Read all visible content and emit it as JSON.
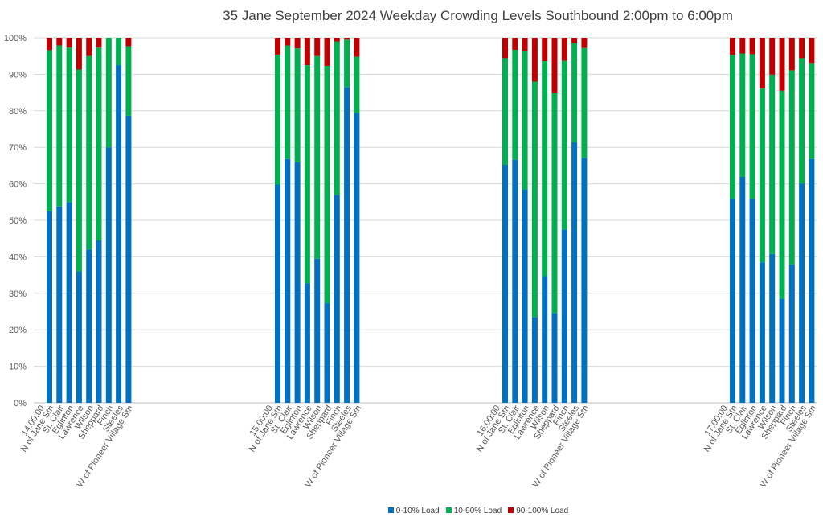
{
  "chart_data": {
    "type": "bar",
    "stacked": true,
    "title": "35 Jane September 2024 Weekday Crowding Levels Southbound 2:00pm to 6:00pm",
    "ylim": [
      0,
      100
    ],
    "yticks": [
      "0%",
      "10%",
      "20%",
      "30%",
      "40%",
      "50%",
      "60%",
      "70%",
      "80%",
      "90%",
      "100%"
    ],
    "grid": true,
    "legend_position": "bottom",
    "stops": [
      "N of Jane Stn",
      "St. Clair",
      "Eglinton",
      "Lawrence",
      "Wilson",
      "Sheppard",
      "Finch",
      "Steeles",
      "W of Pioneer Village Stn"
    ],
    "series_names": [
      "0-10% Load",
      "10-90% Load",
      "90-100% Load"
    ],
    "colors": [
      "#0070c0",
      "#00b050",
      "#c00000"
    ],
    "groups": [
      {
        "label": "14:00:00",
        "series": [
          {
            "name": "0-10% Load",
            "values": [
              52.5,
              53.8,
              55,
              36,
              42,
              44.5,
              70,
              92.5,
              78.7
            ]
          },
          {
            "name": "10-90% Load",
            "values": [
              44.1,
              44.1,
              42.3,
              55.3,
              53,
              52.8,
              30,
              7.5,
              19
            ]
          },
          {
            "name": "90-100% Load",
            "values": [
              3.4,
              2.1,
              2.7,
              8.7,
              5,
              2.7,
              0,
              0,
              2.3
            ]
          }
        ]
      },
      {
        "label": "15:00:00",
        "series": [
          {
            "name": "0-10% Load",
            "values": [
              59.8,
              66.8,
              65.9,
              32.7,
              39.5,
              27.3,
              57,
              86.5,
              79.4
            ]
          },
          {
            "name": "10-90% Load",
            "values": [
              35.6,
              31.1,
              31.2,
              59.8,
              55.5,
              65,
              42,
              13,
              15.4
            ]
          },
          {
            "name": "90-100% Load",
            "values": [
              4.6,
              2.1,
              2.9,
              7.5,
              5,
              7.7,
              1,
              0.5,
              5.2
            ]
          }
        ]
      },
      {
        "label": "16:00:00",
        "series": [
          {
            "name": "0-10% Load",
            "values": [
              65.2,
              66.6,
              58.5,
              23.5,
              34.7,
              24.6,
              47.5,
              71.4,
              67.1
            ]
          },
          {
            "name": "10-90% Load",
            "values": [
              29.2,
              30.1,
              37.8,
              64.5,
              58.9,
              60.2,
              46.2,
              27.1,
              30.1
            ]
          },
          {
            "name": "90-100% Load",
            "values": [
              5.6,
              3.3,
              3.7,
              12,
              6.4,
              15.2,
              6.3,
              1.5,
              2.8
            ]
          }
        ]
      },
      {
        "label": "17:00:00",
        "series": [
          {
            "name": "0-10% Load",
            "values": [
              55.9,
              61.9,
              55.9,
              38.5,
              40.8,
              28.5,
              37.9,
              60.1,
              66.8
            ]
          },
          {
            "name": "10-90% Load",
            "values": [
              39.4,
              33.8,
              39.6,
              47.6,
              49.1,
              57,
              53.2,
              34.3,
              26.3
            ]
          },
          {
            "name": "90-100% Load",
            "values": [
              4.7,
              4.3,
              4.5,
              13.9,
              10.1,
              14.5,
              8.9,
              5.6,
              6.9
            ]
          }
        ]
      }
    ]
  }
}
